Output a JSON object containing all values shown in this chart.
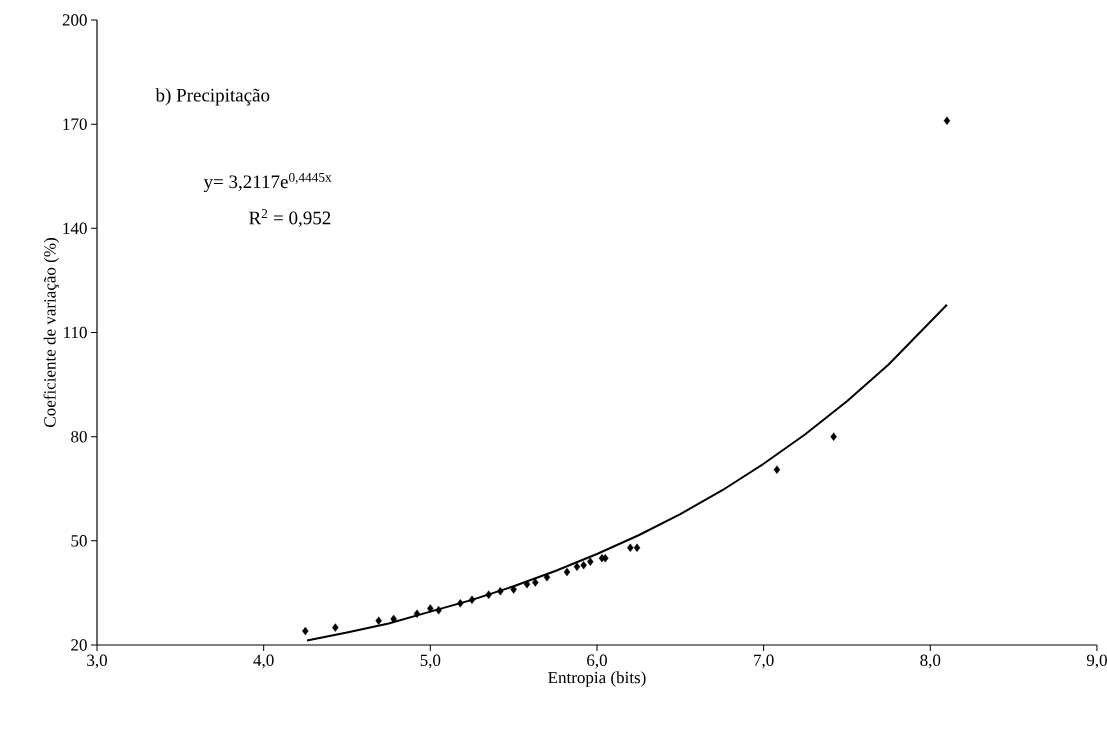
{
  "chart_data": {
    "type": "scatter",
    "xlabel": "Entropia (bits)",
    "ylabel": "Coeficiente de variação (%)",
    "annotations": [
      "b) Precipitação",
      "y= 3,2117e$^{0,4445x}$",
      "R$^{2}$ = 0,952"
    ],
    "xlim": [
      3,
      9
    ],
    "xticks": [
      {
        "value": 3,
        "label": "3,0"
      },
      {
        "value": 4,
        "label": "4,0"
      },
      {
        "value": 5,
        "label": "5,0"
      },
      {
        "value": 6,
        "label": "6,0"
      },
      {
        "value": 7,
        "label": "7,0"
      },
      {
        "value": 8,
        "label": "8,0"
      },
      {
        "value": 9,
        "label": "9,0"
      }
    ],
    "ylim": [
      20,
      200
    ],
    "yticks": [
      20,
      50,
      80,
      110,
      140,
      170,
      200
    ],
    "grid": false,
    "series": [
      {
        "color": "#000000",
        "marker": "diamond",
        "x": [
          4.25,
          4.43,
          4.69,
          4.78,
          4.92,
          5.0,
          5.05,
          5.18,
          5.25,
          5.35,
          5.42,
          5.5,
          5.58,
          5.63,
          5.7,
          5.82,
          5.88,
          5.92,
          5.96,
          6.03,
          6.05,
          6.2,
          6.24,
          7.08,
          7.42,
          8.1
        ],
        "values": [
          24,
          25,
          27,
          27.5,
          29,
          30.5,
          30,
          32,
          33,
          34.5,
          35.5,
          36,
          37.5,
          38,
          39.5,
          41,
          42.5,
          43,
          44,
          45,
          45,
          48,
          48,
          70.5,
          80,
          171
        ]
      },
      {
        "type": "line",
        "color": "#000000",
        "marker": "none",
        "line_style": "solid",
        "x": [
          4.26,
          4.5,
          4.75,
          5.0,
          5.25,
          5.5,
          5.75,
          6.0,
          6.25,
          6.5,
          6.75,
          7.0,
          7.25,
          7.5,
          7.75,
          8.1
        ],
        "values": [
          21.3,
          23.6,
          26.2,
          29.6,
          33,
          36.9,
          41.3,
          46.2,
          51.6,
          57.7,
          64.5,
          72.2,
          80.7,
          90.2,
          100.8,
          118
        ]
      }
    ]
  }
}
